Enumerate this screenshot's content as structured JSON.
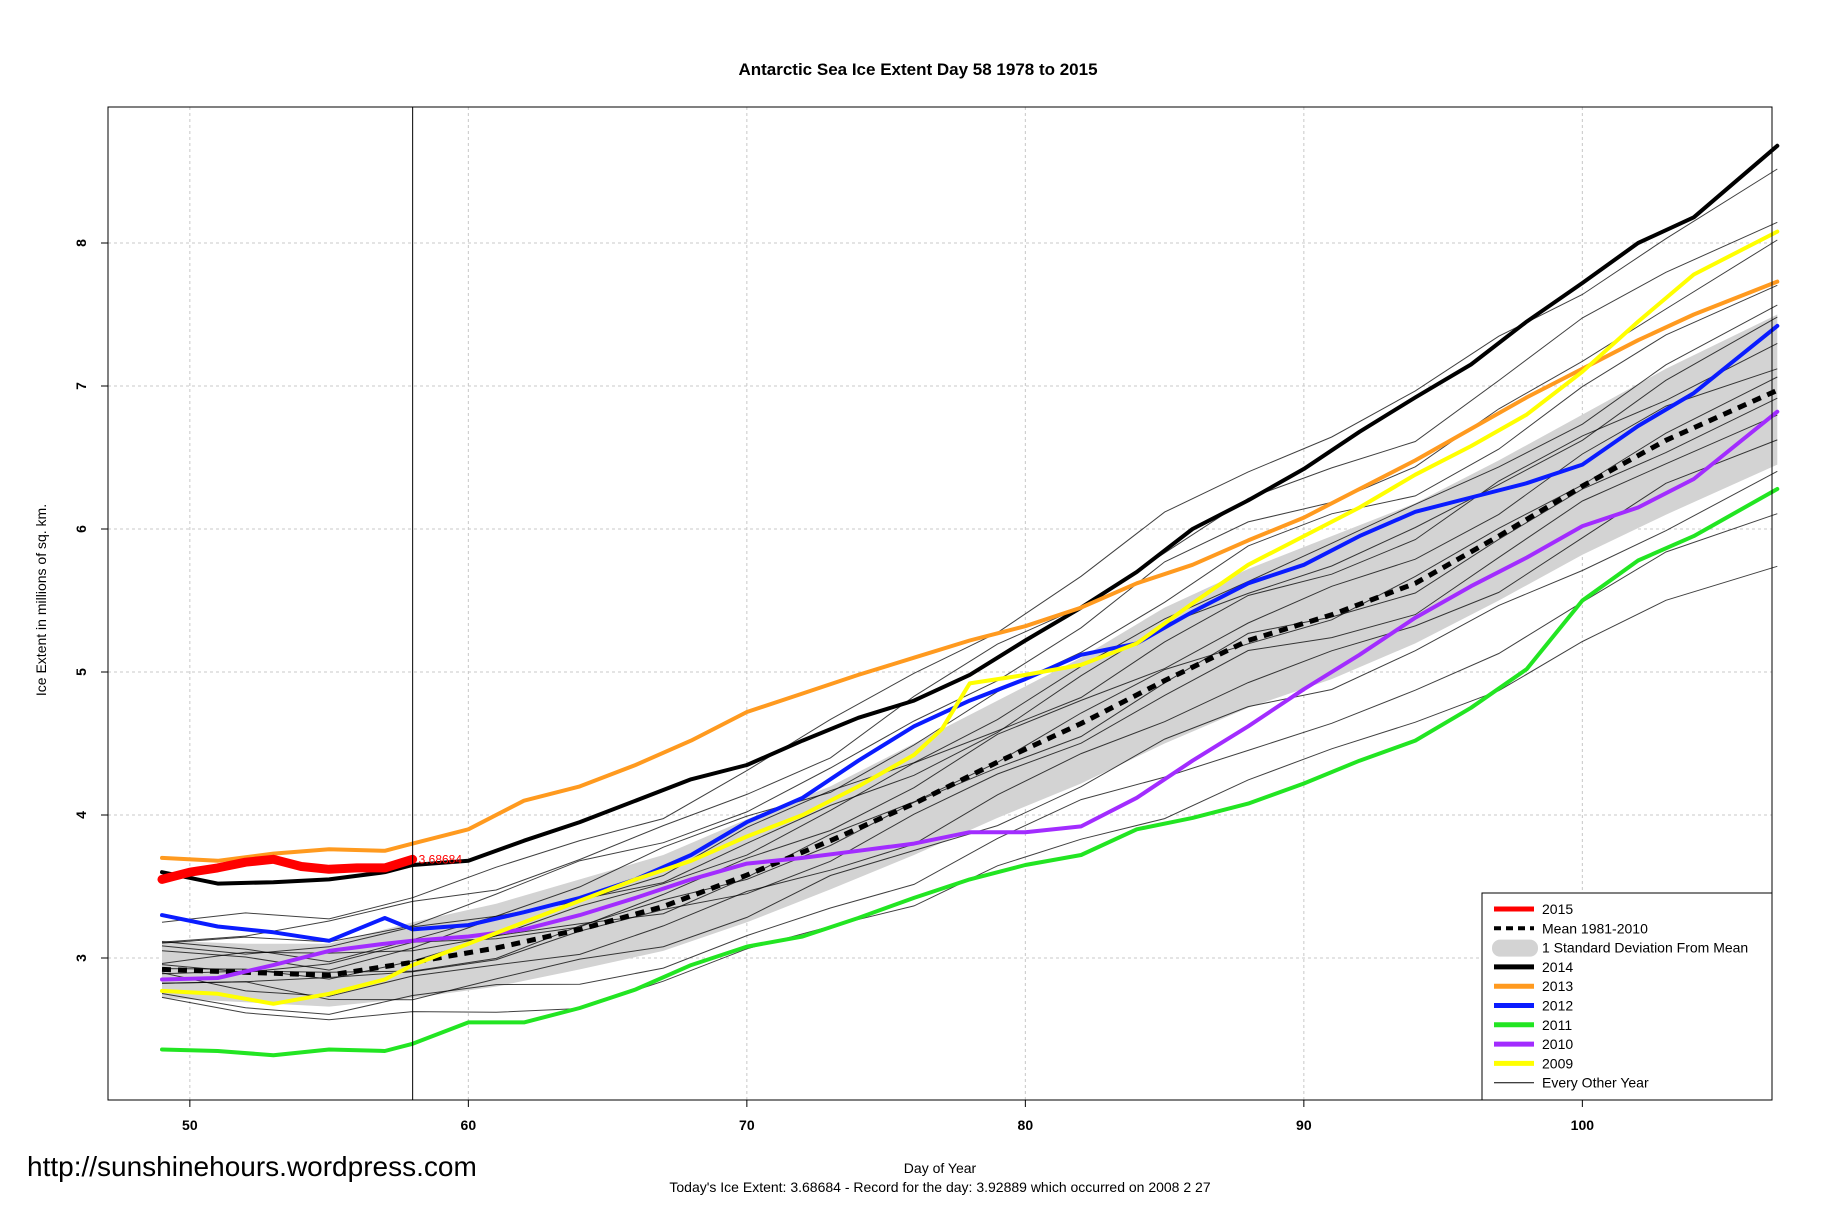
{
  "chart_data": {
    "type": "line",
    "title": "Antarctic Sea Ice Extent Day 58 1978 to 2015",
    "xlabel": "Day of Year",
    "ylabel": "Ice Extent in millions of sq. km.",
    "xlim": [
      49,
      107
    ],
    "ylim": [
      2.0,
      8.8
    ],
    "x_ticks": [
      "50",
      "60",
      "70",
      "80",
      "90",
      "100"
    ],
    "y_ticks": [
      "3",
      "4",
      "5",
      "6",
      "7",
      "8"
    ],
    "grid": true,
    "marker_day": 58,
    "marker_label": "3.68684",
    "legend_position": "bottom-right",
    "legend": [
      {
        "label": "2015",
        "color": "#ff0000",
        "style": "thick"
      },
      {
        "label": "Mean 1981-2010",
        "color": "#000000",
        "style": "dashed"
      },
      {
        "label": "1 Standard Deviation From Mean",
        "color": "#d3d3d3",
        "style": "band"
      },
      {
        "label": "2014",
        "color": "#000000",
        "style": "line"
      },
      {
        "label": "2013",
        "color": "#ff9a1f",
        "style": "line"
      },
      {
        "label": "2012",
        "color": "#0a1cff",
        "style": "line"
      },
      {
        "label": "2011",
        "color": "#22e522",
        "style": "line"
      },
      {
        "label": "2010",
        "color": "#a22cff",
        "style": "line"
      },
      {
        "label": "2009",
        "color": "#ffff00",
        "style": "line"
      },
      {
        "label": "Every Other Year",
        "color": "#000000",
        "style": "thin"
      }
    ],
    "mean": {
      "name": "Mean 1981-2010",
      "x": [
        49,
        52,
        55,
        58,
        61,
        64,
        67,
        70,
        73,
        76,
        79,
        82,
        85,
        88,
        91,
        94,
        97,
        100,
        103,
        107
      ],
      "values": [
        2.92,
        2.9,
        2.88,
        2.97,
        3.07,
        3.2,
        3.36,
        3.58,
        3.82,
        4.08,
        4.37,
        4.64,
        4.94,
        5.22,
        5.4,
        5.62,
        5.95,
        6.3,
        6.62,
        6.97
      ]
    },
    "band": {
      "name": "1 Standard Deviation From Mean",
      "x": [
        49,
        52,
        55,
        58,
        61,
        64,
        67,
        70,
        73,
        76,
        79,
        82,
        85,
        88,
        91,
        94,
        97,
        100,
        103,
        107
      ],
      "upper": [
        3.12,
        3.1,
        3.1,
        3.25,
        3.38,
        3.55,
        3.72,
        3.97,
        4.2,
        4.5,
        4.8,
        5.1,
        5.45,
        5.72,
        5.95,
        6.18,
        6.48,
        6.8,
        7.12,
        7.5
      ],
      "lower": [
        2.72,
        2.69,
        2.66,
        2.72,
        2.8,
        2.92,
        3.05,
        3.25,
        3.48,
        3.72,
        3.98,
        4.22,
        4.5,
        4.75,
        4.95,
        5.2,
        5.5,
        5.82,
        6.1,
        6.45
      ]
    },
    "series": [
      {
        "name": "2014",
        "color": "#000000",
        "width": 4,
        "x": [
          49,
          51,
          53,
          55,
          57,
          58,
          60,
          62,
          64,
          66,
          68,
          70,
          72,
          74,
          76,
          78,
          80,
          82,
          84,
          86,
          88,
          90,
          92,
          94,
          96,
          98,
          100,
          102,
          104,
          107
        ],
        "values": [
          3.6,
          3.52,
          3.53,
          3.55,
          3.6,
          3.65,
          3.68,
          3.82,
          3.95,
          4.1,
          4.25,
          4.35,
          4.52,
          4.68,
          4.8,
          4.98,
          5.22,
          5.45,
          5.7,
          6.0,
          6.2,
          6.42,
          6.68,
          6.92,
          7.15,
          7.45,
          7.72,
          8.0,
          8.18,
          8.68
        ]
      },
      {
        "name": "2013",
        "color": "#ff9a1f",
        "width": 4,
        "x": [
          49,
          51,
          53,
          55,
          57,
          58,
          60,
          62,
          64,
          66,
          68,
          70,
          72,
          74,
          76,
          78,
          80,
          82,
          84,
          86,
          88,
          90,
          92,
          94,
          96,
          98,
          100,
          102,
          104,
          107
        ],
        "values": [
          3.7,
          3.68,
          3.73,
          3.76,
          3.75,
          3.8,
          3.9,
          4.1,
          4.2,
          4.35,
          4.52,
          4.72,
          4.85,
          4.98,
          5.1,
          5.22,
          5.32,
          5.45,
          5.62,
          5.75,
          5.92,
          6.08,
          6.28,
          6.48,
          6.7,
          6.92,
          7.12,
          7.32,
          7.5,
          7.73
        ]
      },
      {
        "name": "2012",
        "color": "#0a1cff",
        "width": 4,
        "x": [
          49,
          51,
          53,
          55,
          57,
          58,
          60,
          62,
          64,
          66,
          68,
          70,
          72,
          74,
          76,
          78,
          80,
          82,
          84,
          86,
          88,
          90,
          92,
          94,
          96,
          98,
          100,
          102,
          104,
          107
        ],
        "values": [
          3.3,
          3.22,
          3.18,
          3.12,
          3.28,
          3.2,
          3.23,
          3.32,
          3.42,
          3.55,
          3.72,
          3.95,
          4.12,
          4.38,
          4.62,
          4.8,
          4.95,
          5.12,
          5.2,
          5.42,
          5.62,
          5.75,
          5.95,
          6.12,
          6.22,
          6.32,
          6.45,
          6.72,
          6.95,
          7.42
        ]
      },
      {
        "name": "2011",
        "color": "#22e522",
        "width": 4,
        "x": [
          49,
          51,
          53,
          55,
          57,
          58,
          60,
          62,
          64,
          66,
          68,
          70,
          72,
          74,
          76,
          78,
          80,
          82,
          84,
          86,
          88,
          90,
          92,
          94,
          96,
          98,
          100,
          102,
          104,
          107
        ],
        "values": [
          2.36,
          2.35,
          2.32,
          2.36,
          2.35,
          2.4,
          2.55,
          2.55,
          2.65,
          2.78,
          2.95,
          3.08,
          3.15,
          3.28,
          3.42,
          3.55,
          3.65,
          3.72,
          3.9,
          3.98,
          4.08,
          4.22,
          4.38,
          4.52,
          4.75,
          5.02,
          5.5,
          5.78,
          5.95,
          6.28
        ]
      },
      {
        "name": "2010",
        "color": "#a22cff",
        "width": 4,
        "x": [
          49,
          51,
          53,
          55,
          57,
          58,
          60,
          62,
          64,
          66,
          68,
          70,
          72,
          74,
          76,
          78,
          80,
          82,
          84,
          86,
          88,
          90,
          92,
          94,
          96,
          98,
          100,
          102,
          104,
          107
        ],
        "values": [
          2.85,
          2.86,
          2.95,
          3.05,
          3.1,
          3.12,
          3.15,
          3.2,
          3.3,
          3.42,
          3.55,
          3.66,
          3.7,
          3.75,
          3.8,
          3.88,
          3.88,
          3.92,
          4.12,
          4.38,
          4.62,
          4.88,
          5.12,
          5.38,
          5.6,
          5.8,
          6.02,
          6.15,
          6.35,
          6.82
        ]
      },
      {
        "name": "2009",
        "color": "#ffff00",
        "width": 4,
        "x": [
          49,
          51,
          53,
          55,
          57,
          58,
          60,
          62,
          64,
          66,
          68,
          70,
          72,
          74,
          76,
          77,
          78,
          80,
          82,
          84,
          86,
          88,
          90,
          92,
          94,
          96,
          98,
          100,
          102,
          104,
          107
        ],
        "values": [
          2.77,
          2.75,
          2.68,
          2.75,
          2.85,
          2.95,
          3.1,
          3.25,
          3.4,
          3.55,
          3.68,
          3.85,
          4.0,
          4.2,
          4.42,
          4.6,
          4.92,
          4.98,
          5.05,
          5.2,
          5.48,
          5.75,
          5.95,
          6.15,
          6.38,
          6.58,
          6.8,
          7.1,
          7.45,
          7.78,
          8.08
        ]
      },
      {
        "name": "2015",
        "color": "#ff0000",
        "width": 9,
        "x": [
          49,
          50,
          51,
          52,
          53,
          54,
          55,
          56,
          57,
          58
        ],
        "values": [
          3.55,
          3.6,
          3.63,
          3.67,
          3.69,
          3.64,
          3.62,
          3.63,
          3.63,
          3.69
        ]
      }
    ]
  },
  "page": {
    "url": "http://sunshinehours.wordpress.com",
    "footer": "Today's Ice Extent: 3.68684  - Record for the day: 3.92889 which occurred on 2008 2 27"
  }
}
